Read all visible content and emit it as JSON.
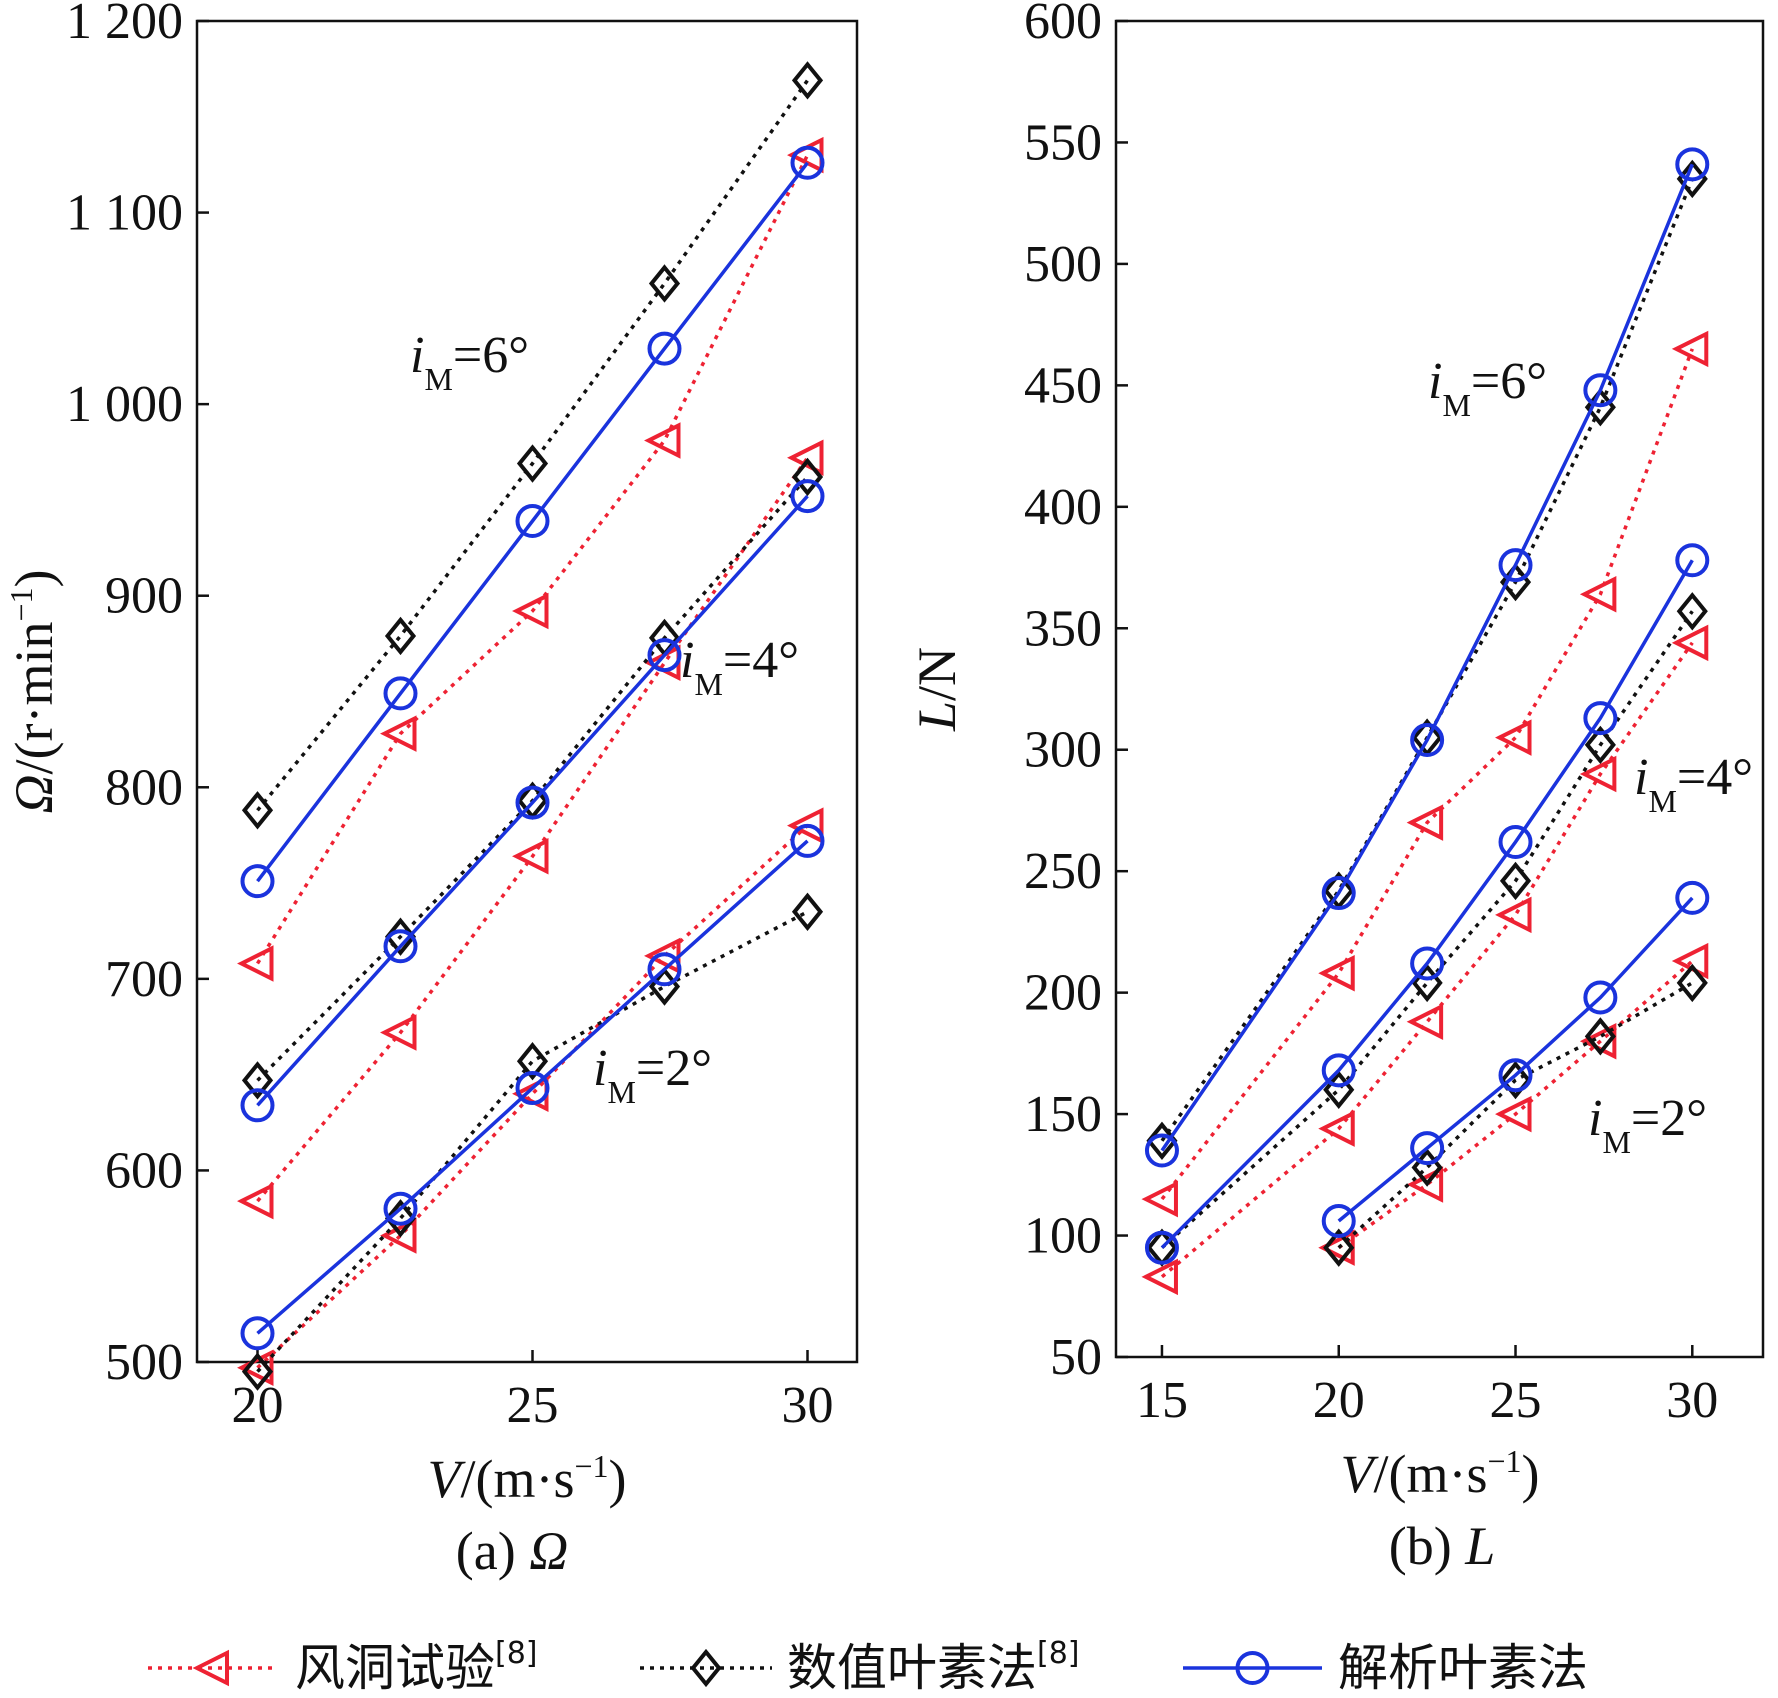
{
  "chart_data": [
    {
      "type": "line",
      "panel": "a",
      "caption_prefix": "(a) ",
      "caption_symbol": "Ω",
      "xlabel_symbol": "V",
      "xlabel_unit": "/(m·s",
      "xlabel_exp": "−1",
      "xlabel_close": ")",
      "ylabel_symbol": "Ω",
      "ylabel_unit": "/(r·min",
      "ylabel_exp": "−1",
      "ylabel_close": ")",
      "xlim": [
        18.9,
        30.9
      ],
      "ylim": [
        500,
        1200
      ],
      "xticks": [
        20,
        25,
        30
      ],
      "xtick_labels": [
        "20",
        "25",
        "30"
      ],
      "yticks": [
        500,
        600,
        700,
        800,
        900,
        1000,
        1100,
        1200
      ],
      "ytick_labels": [
        "500",
        "600",
        "700",
        "800",
        "900",
        "1 000",
        "1 100",
        "1 200"
      ],
      "groups": [
        {
          "label_base": "i",
          "label_sub": "M",
          "label_value": "=6°",
          "series": [
            {
              "name": "风洞试验",
              "x": [
                20,
                22.6,
                25,
                27.4,
                30
              ],
              "y": [
                708,
                828,
                892,
                981,
                1130
              ]
            },
            {
              "name": "数值叶素法",
              "x": [
                20,
                22.6,
                25,
                27.4,
                30
              ],
              "y": [
                788,
                879,
                969,
                1063,
                1169
              ]
            },
            {
              "name": "解析叶素法",
              "x": [
                20,
                22.6,
                25,
                27.4,
                30
              ],
              "y": [
                751,
                849,
                939,
                1029,
                1126
              ]
            }
          ]
        },
        {
          "label_base": "i",
          "label_sub": "M",
          "label_value": "=4°",
          "series": [
            {
              "name": "风洞试验",
              "x": [
                20,
                22.6,
                25,
                27.4,
                30
              ],
              "y": [
                584,
                672,
                764,
                865,
                972
              ]
            },
            {
              "name": "数值叶素法",
              "x": [
                20,
                22.6,
                25,
                27.4,
                30
              ],
              "y": [
                647,
                722,
                793,
                878,
                962
              ]
            },
            {
              "name": "解析叶素法",
              "x": [
                20,
                22.6,
                25,
                27.4,
                30
              ],
              "y": [
                634,
                717,
                792,
                869,
                952
              ]
            }
          ]
        },
        {
          "label_base": "i",
          "label_sub": "M",
          "label_value": "=2°",
          "series": [
            {
              "name": "风洞试验",
              "x": [
                20,
                22.6,
                25,
                27.4,
                30
              ],
              "y": [
                497,
                566,
                640,
                712,
                780
              ]
            },
            {
              "name": "数值叶素法",
              "x": [
                20,
                22.6,
                25,
                27.4,
                30
              ],
              "y": [
                495,
                575,
                657,
                696,
                735
              ]
            },
            {
              "name": "解析叶素法",
              "x": [
                20,
                22.6,
                25,
                27.4,
                30
              ],
              "y": [
                515,
                580,
                643,
                705,
                772
              ]
            }
          ]
        }
      ]
    },
    {
      "type": "line",
      "panel": "b",
      "caption_prefix": "(b) ",
      "caption_symbol": "L",
      "xlabel_symbol": "V",
      "xlabel_unit": "/(m·s",
      "xlabel_exp": "−1",
      "xlabel_close": ")",
      "ylabel_symbol": "L",
      "ylabel_unit": "/N",
      "xlim": [
        13.7,
        32.0
      ],
      "ylim": [
        50,
        600
      ],
      "xticks": [
        15,
        20,
        25,
        30
      ],
      "xtick_labels": [
        "15",
        "20",
        "25",
        "30"
      ],
      "yticks": [
        50,
        100,
        150,
        200,
        250,
        300,
        350,
        400,
        450,
        500,
        550,
        600
      ],
      "ytick_labels": [
        "50",
        "100",
        "150",
        "200",
        "250",
        "300",
        "350",
        "400",
        "450",
        "500",
        "550",
        "600"
      ],
      "groups": [
        {
          "label_base": "i",
          "label_sub": "M",
          "label_value": "=6°",
          "series": [
            {
              "name": "风洞试验",
              "x": [
                15,
                20,
                22.5,
                25,
                27.4,
                30
              ],
              "y": [
                115,
                208,
                270,
                305,
                364,
                465
              ]
            },
            {
              "name": "数值叶素法",
              "x": [
                15,
                20,
                22.5,
                25,
                27.4,
                30
              ],
              "y": [
                139,
                242,
                305,
                369,
                441,
                535
              ]
            },
            {
              "name": "解析叶素法",
              "x": [
                15,
                20,
                22.5,
                25,
                27.4,
                30
              ],
              "y": [
                135,
                241,
                304,
                376,
                448,
                541
              ]
            }
          ]
        },
        {
          "label_base": "i",
          "label_sub": "M",
          "label_value": "=4°",
          "series": [
            {
              "name": "风洞试验",
              "x": [
                15,
                20,
                22.5,
                25,
                27.4,
                30
              ],
              "y": [
                83,
                144,
                188,
                232,
                290,
                344
              ]
            },
            {
              "name": "数值叶素法",
              "x": [
                15,
                20,
                22.5,
                25,
                27.4,
                30
              ],
              "y": [
                95,
                160,
                204,
                246,
                302,
                357
              ]
            },
            {
              "name": "解析叶素法",
              "x": [
                15,
                20,
                22.5,
                25,
                27.4,
                30
              ],
              "y": [
                95,
                168,
                212,
                262,
                313,
                378
              ]
            }
          ]
        },
        {
          "label_base": "i",
          "label_sub": "M",
          "label_value": "=2°",
          "series": [
            {
              "name": "风洞试验",
              "x": [
                20,
                22.5,
                25,
                27.4,
                30
              ],
              "y": [
                95,
                121,
                150,
                180,
                213
              ]
            },
            {
              "name": "数值叶素法",
              "x": [
                20,
                22.5,
                25,
                27.4,
                30
              ],
              "y": [
                95,
                128,
                164,
                182,
                204
              ]
            },
            {
              "name": "解析叶素法",
              "x": [
                20,
                22.5,
                25,
                27.4,
                30
              ],
              "y": [
                106,
                136,
                166,
                198,
                239
              ]
            }
          ]
        }
      ]
    }
  ],
  "styles": [
    {
      "name": "风洞试验",
      "color": "#ee2233",
      "marker": "triangle-left",
      "dash": "4 6"
    },
    {
      "name": "数值叶素法",
      "color": "#111111",
      "marker": "diamond",
      "dash": "4 6"
    },
    {
      "name": "解析叶素法",
      "color": "#1a33dd",
      "marker": "circle",
      "dash": ""
    }
  ],
  "legend": {
    "placement": "bottom",
    "items": [
      {
        "label": "风洞试验",
        "ref": "[8]"
      },
      {
        "label": "数值叶素法",
        "ref": "[8]"
      },
      {
        "label": "解析叶素法",
        "ref": ""
      }
    ]
  }
}
